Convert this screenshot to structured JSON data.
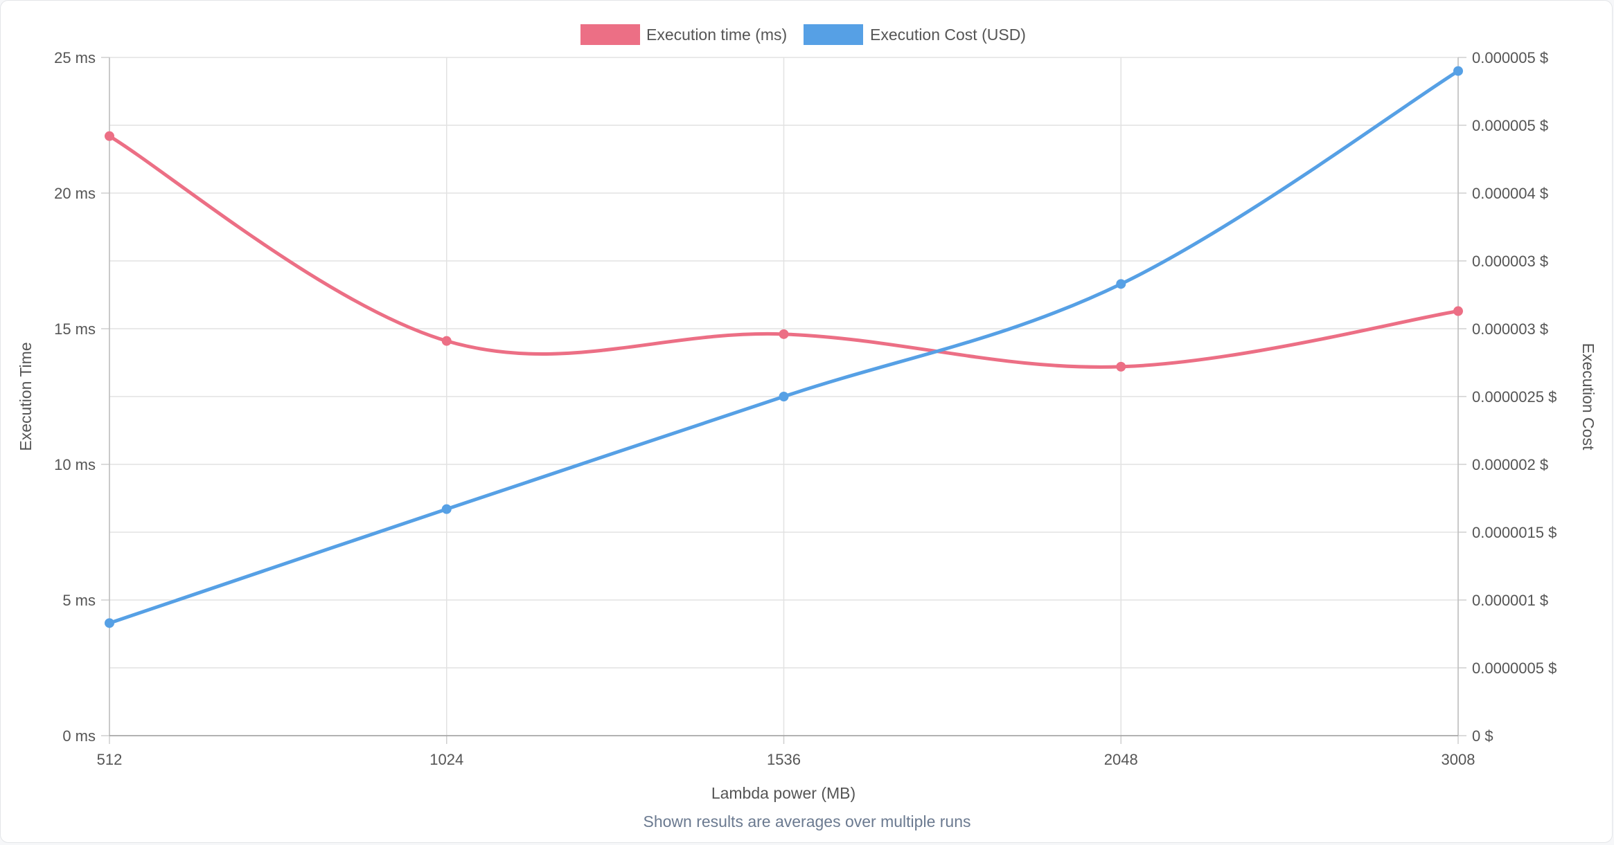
{
  "chart_data": {
    "type": "line",
    "x_label": "Lambda power (MB)",
    "y_left_label": "Execution Time",
    "y_right_label": "Execution Cost",
    "footnote": "Shown results are averages over multiple runs",
    "categories": [
      "512",
      "1024",
      "1536",
      "2048",
      "3008"
    ],
    "y_left_ticks": [
      "0 ms",
      "5 ms",
      "10 ms",
      "15 ms",
      "20 ms",
      "25 ms"
    ],
    "y_left_range": [
      0,
      25
    ],
    "y_right_ticks": [
      "0 $",
      "0.0000005 $",
      "0.000001 $",
      "0.0000015 $",
      "0.000002 $",
      "0.0000025 $",
      "0.000003 $",
      "0.000003 $",
      "0.000004 $",
      "0.000005 $",
      "0.000005 $"
    ],
    "y_right_range": [
      0,
      5e-06
    ],
    "grid": true,
    "legend_position": "top-center",
    "series": [
      {
        "name": "Execution time (ms)",
        "axis": "left",
        "color": "#ec6f85",
        "values": [
          22.1,
          14.55,
          14.8,
          13.6,
          15.65
        ]
      },
      {
        "name": "Execution Cost (USD)",
        "axis": "right",
        "color": "#56a0e5",
        "values": [
          8.3e-07,
          1.67e-06,
          2.5e-06,
          3.33e-06,
          4.9e-06
        ]
      }
    ]
  }
}
